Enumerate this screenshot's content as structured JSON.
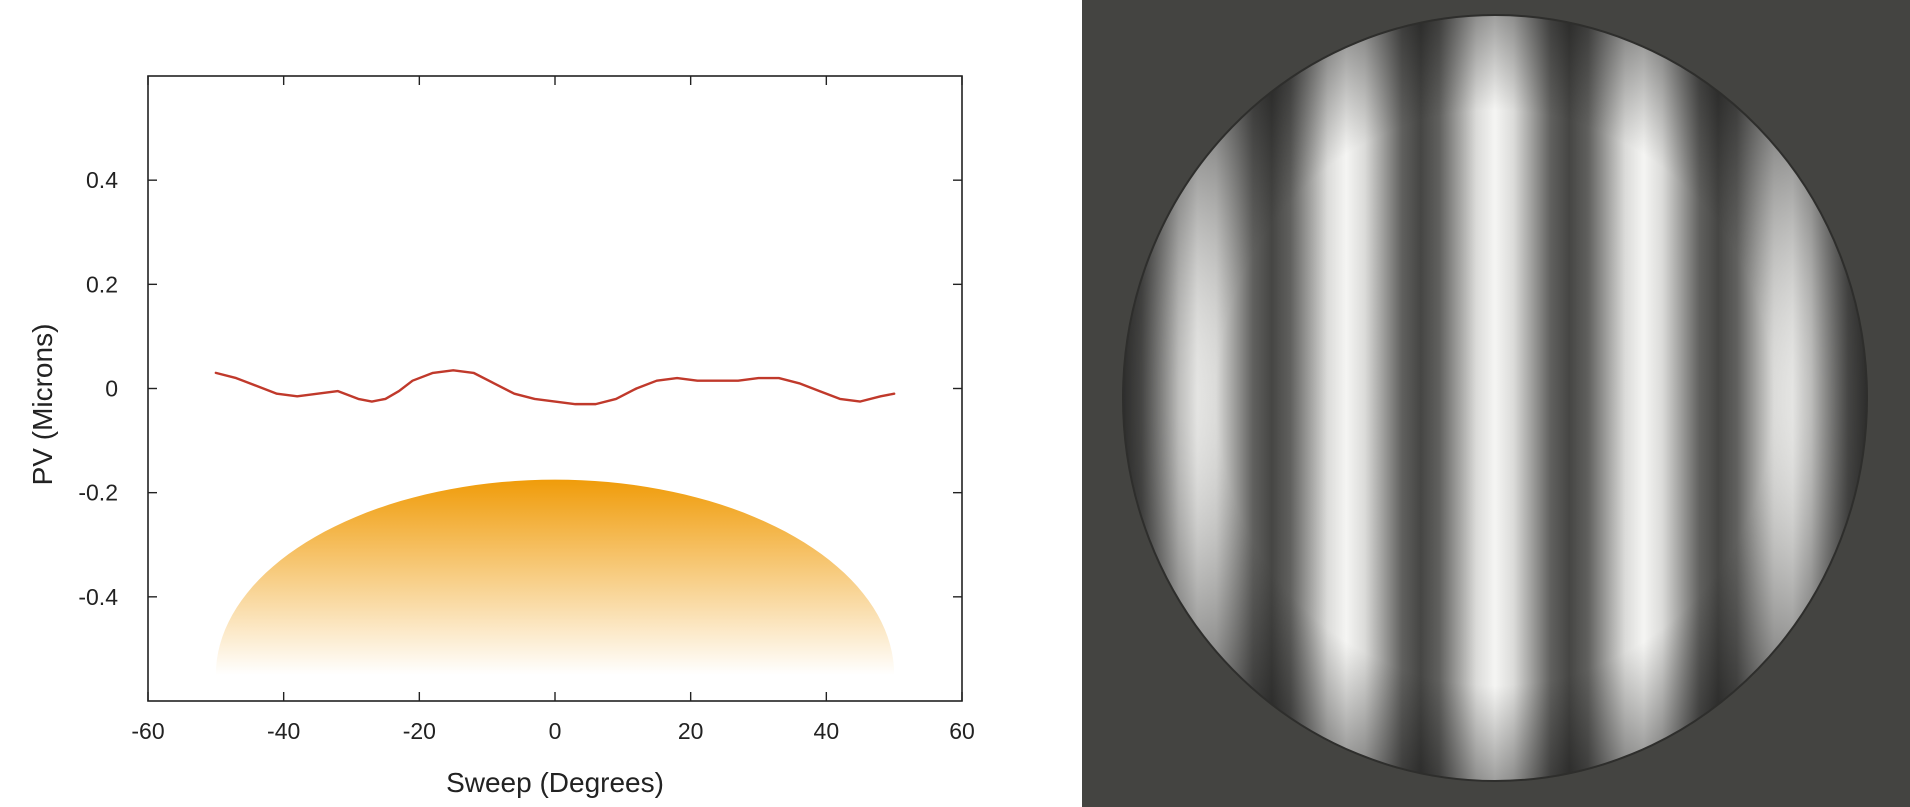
{
  "chart_data": {
    "type": "line",
    "title": "",
    "xlabel": "Sweep (Degrees)",
    "ylabel": "PV (Microns)",
    "xlim": [
      -60,
      60
    ],
    "ylim": [
      -0.6,
      0.6
    ],
    "x_ticks": [
      -60,
      -40,
      -20,
      0,
      20,
      40,
      60
    ],
    "y_ticks": [
      -0.4,
      -0.2,
      0,
      0.2,
      0.4
    ],
    "grid": false,
    "legend": "none",
    "series": [
      {
        "color": "#c0392b",
        "x": [
          -50,
          -47,
          -44,
          -41,
          -38,
          -35,
          -32,
          -29,
          -27,
          -25,
          -23,
          -21,
          -18,
          -15,
          -12,
          -9,
          -6,
          -3,
          0,
          3,
          6,
          9,
          12,
          15,
          18,
          21,
          24,
          27,
          30,
          33,
          36,
          39,
          42,
          45,
          48,
          50
        ],
        "y": [
          0.03,
          0.02,
          0.005,
          -0.01,
          -0.015,
          -0.01,
          -0.005,
          -0.02,
          -0.025,
          -0.02,
          -0.005,
          0.015,
          0.03,
          0.035,
          0.03,
          0.01,
          -0.01,
          -0.02,
          -0.025,
          -0.03,
          -0.03,
          -0.02,
          0.0,
          0.015,
          0.02,
          0.015,
          0.015,
          0.015,
          0.02,
          0.02,
          0.01,
          -0.005,
          -0.02,
          -0.025,
          -0.015,
          -0.01
        ]
      }
    ],
    "dome": {
      "color": "#f0a010",
      "x_range": [
        -50,
        50
      ],
      "peak_y": -0.175,
      "base_y": -0.55
    }
  },
  "fringe_image": {
    "background": "#444441",
    "fringe_count": 5
  }
}
